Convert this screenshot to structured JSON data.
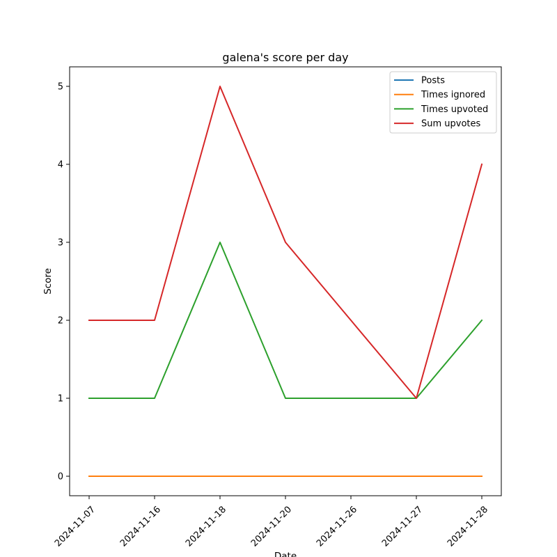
{
  "chart_data": {
    "type": "line",
    "title": "galena's score per day",
    "xlabel": "Date",
    "ylabel": "Score",
    "categories": [
      "2024-11-07",
      "2024-11-16",
      "2024-11-18",
      "2024-11-20",
      "2024-11-26",
      "2024-11-27",
      "2024-11-28"
    ],
    "ylim": [
      -0.25,
      5.25
    ],
    "yticks": [
      0,
      1,
      2,
      3,
      4,
      5
    ],
    "grid": false,
    "legend_position": "top-right",
    "series": [
      {
        "name": "Posts",
        "color": "#1f77b4",
        "values": [
          0,
          0,
          0,
          0,
          0,
          0,
          0
        ]
      },
      {
        "name": "Times ignored",
        "color": "#ff7f0e",
        "values": [
          0,
          0,
          0,
          0,
          0,
          0,
          0
        ]
      },
      {
        "name": "Times upvoted",
        "color": "#2ca02c",
        "values": [
          1,
          1,
          3,
          1,
          1,
          1,
          2
        ]
      },
      {
        "name": "Sum upvotes",
        "color": "#d62728",
        "values": [
          2,
          2,
          5,
          3,
          2,
          1,
          4
        ]
      }
    ]
  }
}
